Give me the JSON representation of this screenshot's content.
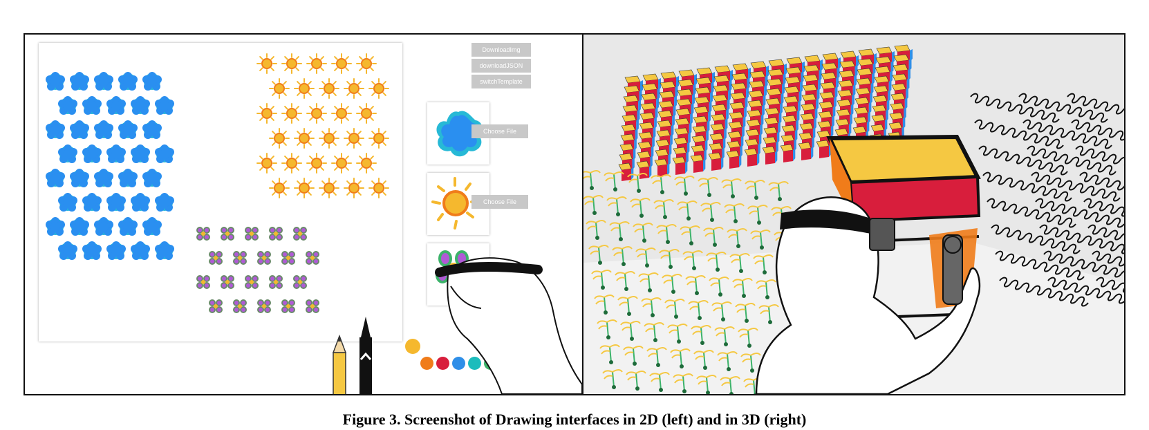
{
  "figure": {
    "caption": "Figure 3. Screenshot of Drawing interfaces in 2D (left) and in 3D (right)"
  },
  "panel_2d": {
    "buttons": [
      {
        "label": "DownloadImg"
      },
      {
        "label": "downloadJSON"
      },
      {
        "label": "switchTemplate"
      }
    ],
    "choose_file_buttons": [
      {
        "label": "Choose File"
      },
      {
        "label": "Choose File"
      }
    ],
    "templates": [
      {
        "icon": "blue-blob-icon"
      },
      {
        "icon": "sun-icon"
      },
      {
        "icon": "flower-icon"
      }
    ],
    "selected_color": "#f5b82e",
    "palette": [
      "#f07c1a",
      "#d81e3c",
      "#2f8fe8",
      "#1cbcbc",
      "#3cb36a",
      "#b05ad6",
      "#111111"
    ]
  },
  "panel_3d": {
    "scene": "vr-drawing-scene"
  }
}
